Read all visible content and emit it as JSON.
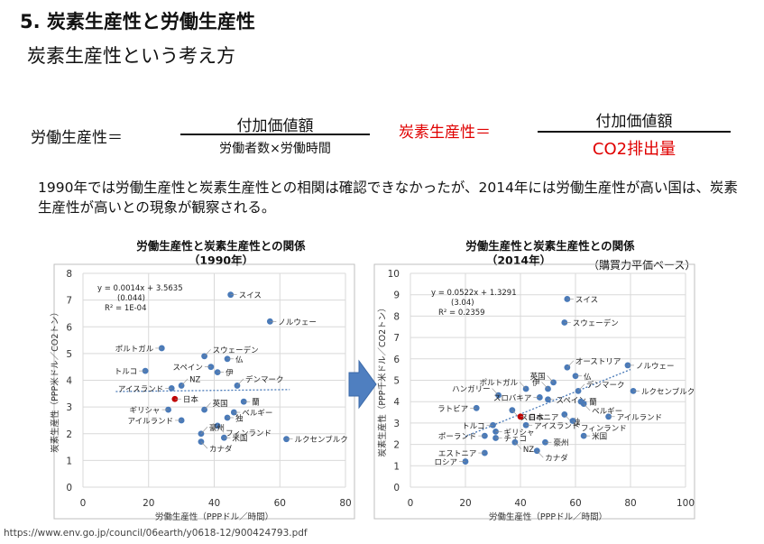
{
  "heading": "5. 炭素生産性と労働生産性",
  "subheading": "炭素生産性という考え方",
  "formula_labor": {
    "label": "労働生産性＝",
    "numerator": "付加価値額",
    "denominator": "労働者数×労働時間"
  },
  "formula_carbon": {
    "label": "炭素生産性＝",
    "numerator": "付加価値額",
    "denominator": "CO2排出量",
    "accent": "#e00000"
  },
  "description": "1990年では労働生産性と炭素生産性との相関は確認できなかったが、2014年には労働生産性が高い国は、炭素生産性が高いとの現象が観察される。",
  "note": "（購買力平価ベース）",
  "source_url": "https://www.env.go.jp/council/06earth/y0618-12/900424793.pdf",
  "colors": {
    "point": "#4a7ab8",
    "japan": "#c00000",
    "arrow": "#4f7fc0",
    "grid": "#d9d9d9"
  },
  "chart_data": [
    {
      "type": "scatter",
      "title": "労働生産性と炭素生産性との関係",
      "subtitle": "（1990年）",
      "xlabel": "労働生産性（PPPドル／時間）",
      "ylabel": "炭素生産性（PPP米ドル／CO2トン）",
      "xlim": [
        0,
        80
      ],
      "ylim": [
        0,
        8
      ],
      "xticks": [
        "0",
        "20",
        "40",
        "60",
        "80"
      ],
      "yticks": [
        "0",
        "1",
        "2",
        "3",
        "4",
        "5",
        "6",
        "7",
        "8"
      ],
      "equation": [
        "y = 0.0014x + 3.5635",
        "(0.044)",
        "R² = 1E-04"
      ],
      "trend": {
        "slope": 0.0014,
        "intercept": 3.5635,
        "from": 10,
        "to": 63
      },
      "points": [
        {
          "label": "スイス",
          "x": 45,
          "y": 7.2
        },
        {
          "label": "ノルウェー",
          "x": 57,
          "y": 6.2
        },
        {
          "label": "ポルトガル",
          "x": 24,
          "y": 5.2
        },
        {
          "label": "スウェーデン",
          "x": 37,
          "y": 4.9
        },
        {
          "label": "仏",
          "x": 44,
          "y": 4.8
        },
        {
          "label": "スペイン",
          "x": 39,
          "y": 4.5
        },
        {
          "label": "伊",
          "x": 41,
          "y": 4.3
        },
        {
          "label": "トルコ",
          "x": 19,
          "y": 4.35
        },
        {
          "label": "NZ",
          "x": 30,
          "y": 3.8
        },
        {
          "label": "アイスランド",
          "x": 27,
          "y": 3.7
        },
        {
          "label": "デンマーク",
          "x": 47,
          "y": 3.8
        },
        {
          "label": "日本",
          "x": 28,
          "y": 3.3,
          "highlight": true
        },
        {
          "label": "蘭",
          "x": 49,
          "y": 3.2
        },
        {
          "label": "英国",
          "x": 37,
          "y": 2.9
        },
        {
          "label": "ギリシャ",
          "x": 26,
          "y": 2.9
        },
        {
          "label": "ベルギー",
          "x": 46,
          "y": 2.8
        },
        {
          "label": "独",
          "x": 44,
          "y": 2.6
        },
        {
          "label": "アイルランド",
          "x": 30,
          "y": 2.5
        },
        {
          "label": "フィンランド",
          "x": 41,
          "y": 2.3
        },
        {
          "label": "米国",
          "x": 43,
          "y": 1.85
        },
        {
          "label": "ルクセンブルク",
          "x": 62,
          "y": 1.8
        },
        {
          "label": "豪州",
          "x": 36,
          "y": 2.0
        },
        {
          "label": "カナダ",
          "x": 36,
          "y": 1.7
        }
      ]
    },
    {
      "type": "scatter",
      "title": "労働生産性と炭素生産性との関係",
      "subtitle": "（2014年）",
      "xlabel": "労働生産性（PPPドル／時間）",
      "ylabel": "炭素生産性（PPP千米ドル／CO2トン）",
      "xlim": [
        0,
        100
      ],
      "ylim": [
        0,
        10
      ],
      "xticks": [
        "0",
        "20",
        "40",
        "60",
        "80",
        "100"
      ],
      "yticks": [
        "0",
        "1",
        "2",
        "3",
        "4",
        "5",
        "6",
        "7",
        "8",
        "9",
        "10"
      ],
      "equation": [
        "y = 0.0522x + 1.3291",
        "(3.04)",
        "R² = 0.2359"
      ],
      "trend": {
        "slope": 0.0522,
        "intercept": 1.3291,
        "from": 20,
        "to": 80
      },
      "points": [
        {
          "label": "スイス",
          "x": 57,
          "y": 8.8
        },
        {
          "label": "スウェーデン",
          "x": 56,
          "y": 7.7
        },
        {
          "label": "ノルウェー",
          "x": 79,
          "y": 5.7
        },
        {
          "label": "オーストリア",
          "x": 57,
          "y": 5.6
        },
        {
          "label": "ポルトガル",
          "x": 42,
          "y": 4.6
        },
        {
          "label": "英国",
          "x": 52,
          "y": 4.9
        },
        {
          "label": "仏",
          "x": 60,
          "y": 5.2
        },
        {
          "label": "伊",
          "x": 50,
          "y": 4.6
        },
        {
          "label": "ハンガリー",
          "x": 32,
          "y": 4.3
        },
        {
          "label": "スロバキア",
          "x": 47,
          "y": 4.2
        },
        {
          "label": "デンマーク",
          "x": 61,
          "y": 4.5
        },
        {
          "label": "ルクセンブルク",
          "x": 81,
          "y": 4.5
        },
        {
          "label": "スペイン",
          "x": 50,
          "y": 4.1
        },
        {
          "label": "ラトビア",
          "x": 24,
          "y": 3.7
        },
        {
          "label": "蘭",
          "x": 62,
          "y": 4.0
        },
        {
          "label": "ベルギー",
          "x": 63,
          "y": 3.9
        },
        {
          "label": "スロベニア",
          "x": 37,
          "y": 3.6
        },
        {
          "label": "日本",
          "x": 40,
          "y": 3.3,
          "highlight": true
        },
        {
          "label": "独",
          "x": 56,
          "y": 3.4
        },
        {
          "label": "アイルランド",
          "x": 72,
          "y": 3.3
        },
        {
          "label": "フィンランド",
          "x": 59,
          "y": 3.1
        },
        {
          "label": "トルコ",
          "x": 30,
          "y": 2.9
        },
        {
          "label": "アイスランド",
          "x": 42,
          "y": 2.9
        },
        {
          "label": "ギリシャ",
          "x": 31,
          "y": 2.6
        },
        {
          "label": "ポーランド",
          "x": 27,
          "y": 2.4
        },
        {
          "label": "チェコ",
          "x": 31,
          "y": 2.3
        },
        {
          "label": "NZ",
          "x": 38,
          "y": 2.1
        },
        {
          "label": "米国",
          "x": 63,
          "y": 2.4
        },
        {
          "label": "豪州",
          "x": 49,
          "y": 2.1
        },
        {
          "label": "カナダ",
          "x": 46,
          "y": 1.7
        },
        {
          "label": "エストニア",
          "x": 27,
          "y": 1.6
        },
        {
          "label": "ロシア",
          "x": 20,
          "y": 1.2
        }
      ]
    }
  ]
}
